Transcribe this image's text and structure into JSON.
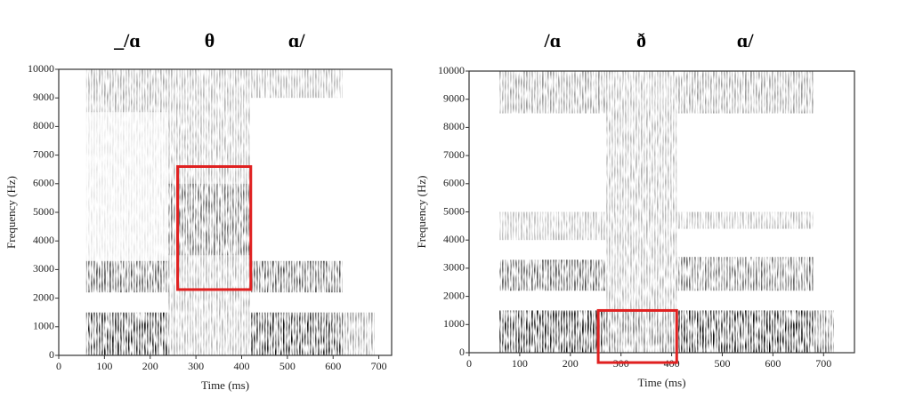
{
  "chart_data": [
    {
      "type": "spectrogram",
      "xlabel": "Time (ms)",
      "ylabel": "Frequency (Hz)",
      "xlim": [
        0,
        728
      ],
      "ylim": [
        0,
        10000
      ],
      "xticks": [
        0,
        100,
        200,
        300,
        400,
        500,
        600,
        700
      ],
      "yticks": [
        0,
        1000,
        2000,
        3000,
        4000,
        5000,
        6000,
        7000,
        8000,
        9000,
        10000
      ],
      "phones": [
        {
          "label": "_/ɑ",
          "x": [
            60,
            240
          ]
        },
        {
          "label": "θ",
          "x": [
            250,
            410
          ]
        },
        {
          "label": "ɑ/",
          "x": [
            420,
            620
          ]
        }
      ],
      "regions": [
        {
          "x": [
            60,
            240
          ],
          "y": [
            0,
            1500
          ],
          "level": 0.9
        },
        {
          "x": [
            60,
            240
          ],
          "y": [
            2200,
            3300
          ],
          "level": 0.7
        },
        {
          "x": [
            60,
            240
          ],
          "y": [
            3300,
            8500
          ],
          "level": 0.1
        },
        {
          "x": [
            60,
            240
          ],
          "y": [
            8500,
            10000
          ],
          "level": 0.35
        },
        {
          "x": [
            240,
            420
          ],
          "y": [
            0,
            10000
          ],
          "level": 0.3
        },
        {
          "x": [
            240,
            420
          ],
          "y": [
            3500,
            6000
          ],
          "level": 0.45
        },
        {
          "x": [
            420,
            620
          ],
          "y": [
            0,
            1500
          ],
          "level": 0.9
        },
        {
          "x": [
            420,
            620
          ],
          "y": [
            2200,
            3300
          ],
          "level": 0.7
        },
        {
          "x": [
            420,
            620
          ],
          "y": [
            9000,
            10000
          ],
          "level": 0.3
        },
        {
          "x": [
            620,
            690
          ],
          "y": [
            0,
            1500
          ],
          "level": 0.4
        }
      ],
      "highlight": {
        "x": [
          260,
          420
        ],
        "y": [
          2300,
          6600
        ],
        "color": "#e02020"
      }
    },
    {
      "type": "spectrogram",
      "xlabel": "Time (ms)",
      "ylabel": "Frequency (Hz)",
      "xlim": [
        0,
        761
      ],
      "ylim": [
        0,
        10000
      ],
      "xticks": [
        0,
        100,
        200,
        300,
        400,
        500,
        600,
        700
      ],
      "yticks": [
        0,
        1000,
        2000,
        3000,
        4000,
        5000,
        6000,
        7000,
        8000,
        9000,
        10000
      ],
      "phones": [
        {
          "label": "/ɑ",
          "x": [
            60,
            270
          ]
        },
        {
          "label": "ð",
          "x": [
            270,
            410
          ]
        },
        {
          "label": "ɑ/",
          "x": [
            410,
            680
          ]
        }
      ],
      "regions": [
        {
          "x": [
            60,
            270
          ],
          "y": [
            0,
            1500
          ],
          "level": 0.95
        },
        {
          "x": [
            60,
            270
          ],
          "y": [
            2200,
            3300
          ],
          "level": 0.7
        },
        {
          "x": [
            60,
            270
          ],
          "y": [
            4000,
            5000
          ],
          "level": 0.3
        },
        {
          "x": [
            60,
            270
          ],
          "y": [
            8500,
            10000
          ],
          "level": 0.4
        },
        {
          "x": [
            270,
            410
          ],
          "y": [
            0,
            1500
          ],
          "level": 0.5
        },
        {
          "x": [
            270,
            410
          ],
          "y": [
            1500,
            10000
          ],
          "level": 0.3
        },
        {
          "x": [
            410,
            680
          ],
          "y": [
            0,
            1500
          ],
          "level": 0.95
        },
        {
          "x": [
            410,
            680
          ],
          "y": [
            2200,
            3400
          ],
          "level": 0.6
        },
        {
          "x": [
            410,
            680
          ],
          "y": [
            4400,
            5000
          ],
          "level": 0.3
        },
        {
          "x": [
            410,
            680
          ],
          "y": [
            8500,
            10000
          ],
          "level": 0.4
        },
        {
          "x": [
            680,
            720
          ],
          "y": [
            0,
            1500
          ],
          "level": 0.6
        }
      ],
      "highlight": {
        "x": [
          255,
          410
        ],
        "y": [
          -350,
          1500
        ],
        "color": "#e02020"
      }
    }
  ]
}
